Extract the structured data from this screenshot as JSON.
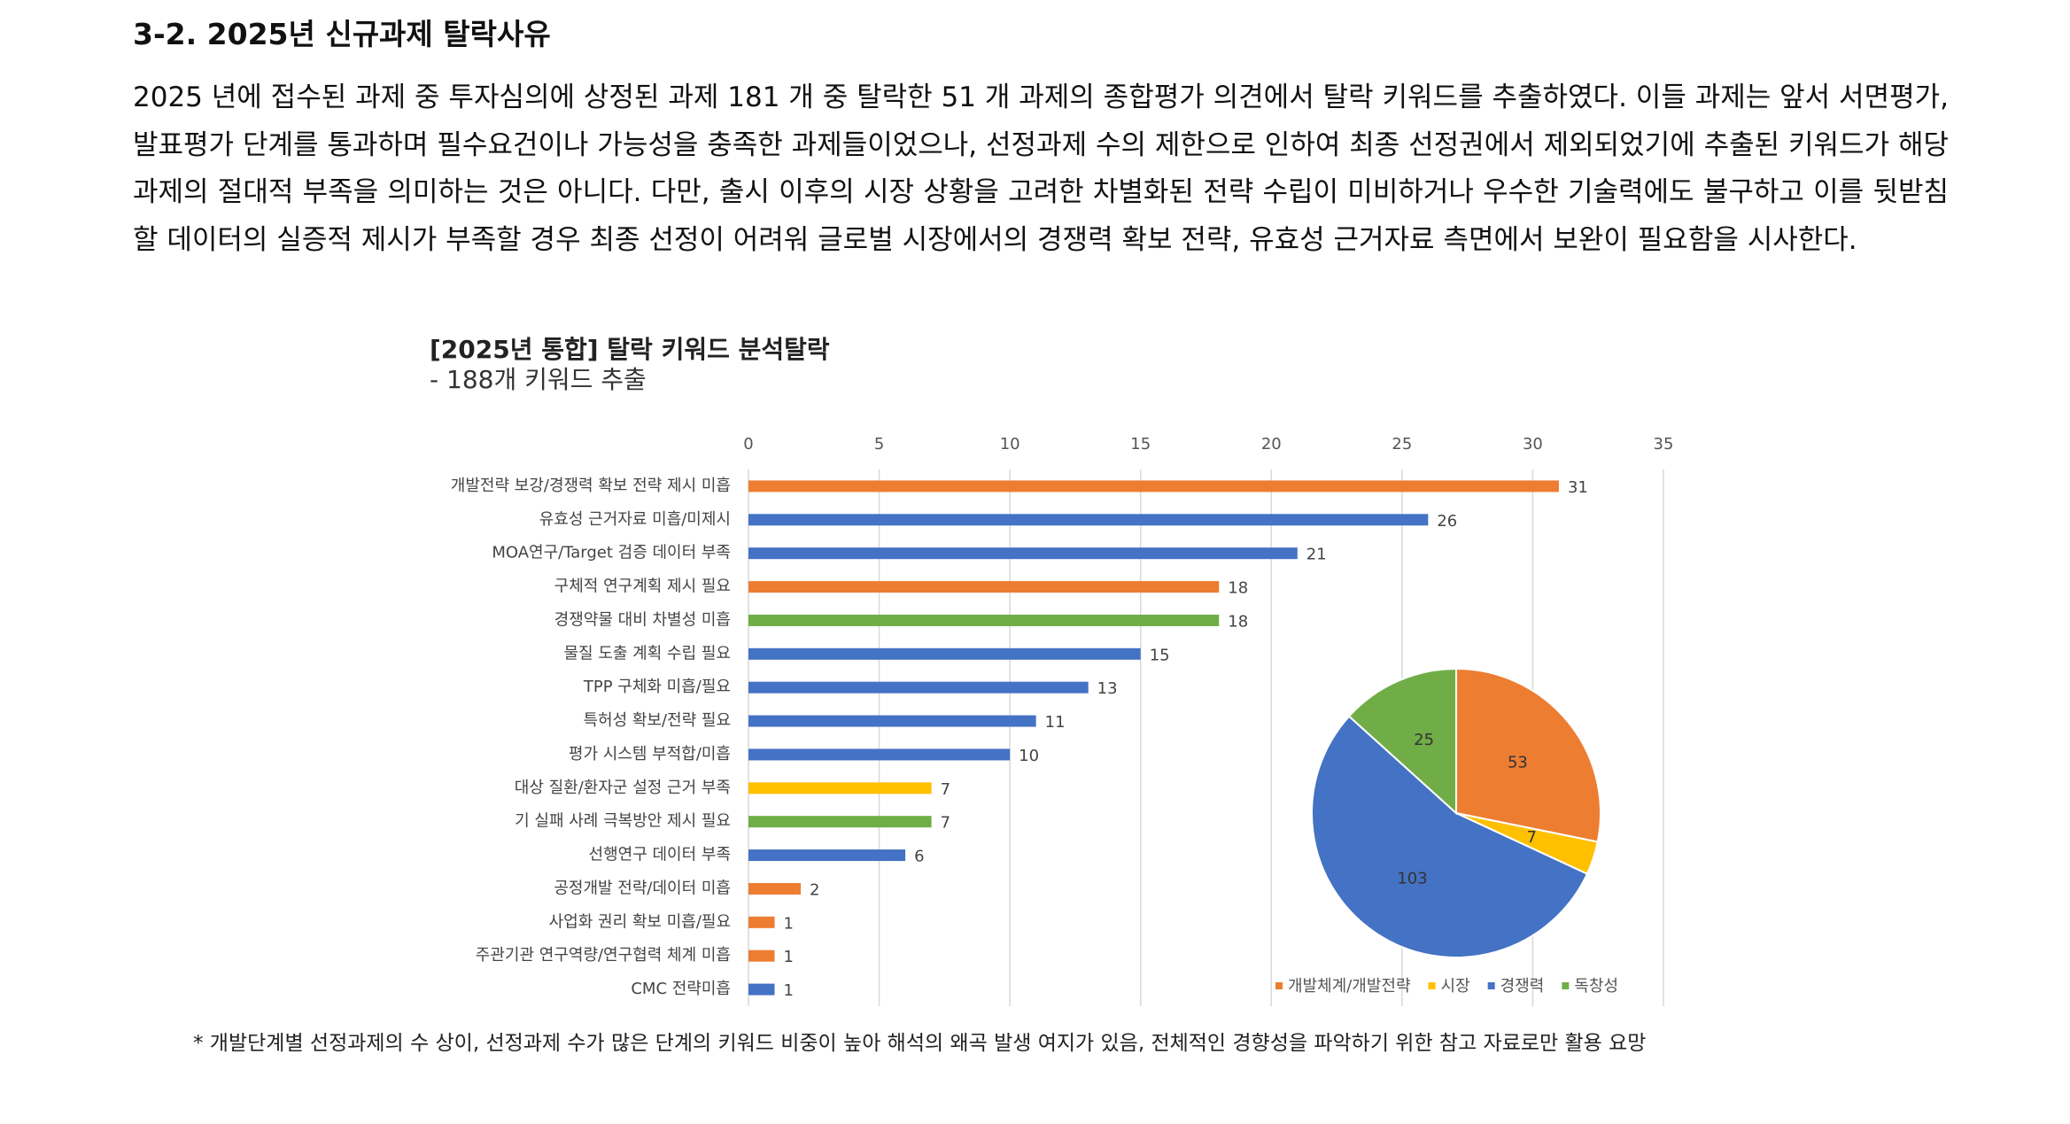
{
  "heading": "3-2. 2025년 신규과제 탈락사유",
  "paragraph": "2025 년에 접수된 과제 중 투자심의에 상정된 과제 181 개 중 탈락한 51 개 과제의 종합평가 의견에서 탈락 키워드를 추출하였다. 이들 과제는 앞서 서면평가, 발표평가 단계를 통과하며 필수요건이나 가능성을 충족한 과제들이었으나, 선정과제 수의 제한으로 인하여 최종 선정권에서 제외되었기에 추출된 키워드가 해당 과제의 절대적 부족을 의미하는 것은 아니다. 다만, 출시 이후의 시장 상황을 고려한 차별화된 전략 수립이 미비하거나 우수한 기술력에도 불구하고 이를 뒷받침할 데이터의 실증적 제시가 부족할 경우 최종 선정이 어려워 글로벌 시장에서의 경쟁력 확보 전략, 유효성 근거자료 측면에서 보완이 필요함을 시사한다.",
  "chart_data": [
    {
      "type": "bar",
      "orientation": "horizontal",
      "title": "[2025년 통합] 탈락 키워드 분석탈락",
      "subtitle": "- 188개 키워드 추출",
      "categories": [
        "개발전략 보강/경쟁력 확보 전략 제시 미흡",
        "유효성 근거자료 미흡/미제시",
        "MOA연구/Target 검증 데이터 부족",
        "구체적 연구계획 제시 필요",
        "경쟁약물 대비 차별성 미흡",
        "물질 도출 계획 수립 필요",
        "TPP 구체화 미흡/필요",
        "특허성 확보/전략 필요",
        "평가 시스템 부적합/미흡",
        "대상 질환/환자군 설정 근거 부족",
        "기 실패 사례 극복방안 제시 필요",
        "선행연구 데이터 부족",
        "공정개발 전략/데이터 미흡",
        "사업화 권리 확보 미흡/필요",
        "주관기관 연구역량/연구협력 체계 미흡",
        "CMC 전략미흡"
      ],
      "values": [
        31,
        26,
        21,
        18,
        18,
        15,
        13,
        11,
        10,
        7,
        7,
        6,
        2,
        1,
        1,
        1
      ],
      "colors": [
        "#ED7D31",
        "#4472C4",
        "#4472C4",
        "#ED7D31",
        "#70AD47",
        "#4472C4",
        "#4472C4",
        "#4472C4",
        "#4472C4",
        "#FFC000",
        "#70AD47",
        "#4472C4",
        "#ED7D31",
        "#ED7D31",
        "#ED7D31",
        "#4472C4"
      ],
      "xlim": [
        0,
        35
      ],
      "xticks": [
        0,
        5,
        10,
        15,
        20,
        25,
        30,
        35
      ],
      "grid": true
    },
    {
      "type": "pie",
      "categories": [
        "개발체계/개발전략",
        "시장",
        "경쟁력",
        "독창성"
      ],
      "values": [
        53,
        7,
        103,
        25
      ],
      "colors": [
        "#ED7D31",
        "#FFC000",
        "#4472C4",
        "#70AD47"
      ],
      "legend": "bottom"
    }
  ],
  "footnote": "* 개발단계별 선정과제의 수 상이, 선정과제 수가 많은 단계의 키워드 비중이 높아 해석의 왜곡 발생 여지가 있음, 전체적인 경향성을 파악하기 위한 참고 자료로만 활용 요망"
}
